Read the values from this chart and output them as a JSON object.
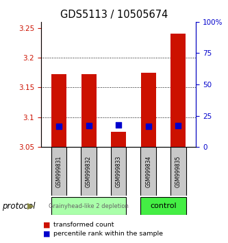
{
  "title": "GDS5113 / 10505674",
  "samples": [
    "GSM999831",
    "GSM999832",
    "GSM999833",
    "GSM999834",
    "GSM999835"
  ],
  "bar_bottoms": [
    3.05,
    3.05,
    3.05,
    3.05,
    3.05
  ],
  "bar_tops": [
    3.172,
    3.172,
    3.075,
    3.175,
    3.24
  ],
  "percentile_values": [
    3.085,
    3.086,
    3.087,
    3.085,
    3.086
  ],
  "bar_color": "#cc1100",
  "percentile_color": "#0000cc",
  "ylim_left": [
    3.05,
    3.26
  ],
  "yticks_left": [
    3.05,
    3.1,
    3.15,
    3.2,
    3.25
  ],
  "ylim_right": [
    0,
    100
  ],
  "yticks_right": [
    0,
    25,
    50,
    75,
    100
  ],
  "ytick_labels_right": [
    "0",
    "25",
    "50",
    "75",
    "100%"
  ],
  "groups": [
    {
      "label": "Grainyhead-like 2 depletion",
      "indices": [
        0,
        1,
        2
      ],
      "color": "#aaffaa"
    },
    {
      "label": "control",
      "indices": [
        3,
        4
      ],
      "color": "#44ee44"
    }
  ],
  "protocol_label": "protocol",
  "legend_items": [
    {
      "label": "transformed count",
      "color": "#cc1100"
    },
    {
      "label": "percentile rank within the sample",
      "color": "#0000cc"
    }
  ],
  "bar_width": 0.5,
  "figsize": [
    3.33,
    3.54
  ],
  "dpi": 100,
  "tick_color_left": "#cc1100",
  "tick_color_right": "#0000cc"
}
